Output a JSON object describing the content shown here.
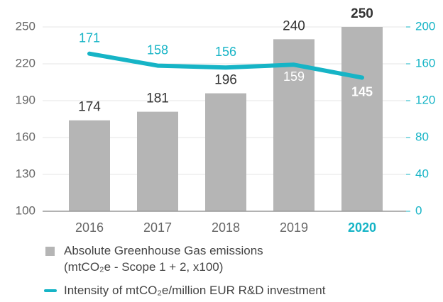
{
  "chart_data": {
    "type": "bar",
    "categories": [
      "2016",
      "2017",
      "2018",
      "2019",
      "2020"
    ],
    "series": [
      {
        "name": "Absolute Greenhouse Gas emissions\n(mtCO₂e - Scope 1 + 2, x100)",
        "color": "#b5b5b5",
        "type": "bar",
        "values": [
          174,
          181,
          196,
          240,
          250
        ]
      },
      {
        "name": "Intensity of mtCO₂e/million EUR R&D investment",
        "color": "#16b4c6",
        "type": "line",
        "axis": "y2",
        "values": [
          171,
          158,
          156,
          159,
          145
        ]
      }
    ],
    "ylim": [
      100,
      250
    ],
    "yticks": [
      100,
      130,
      160,
      190,
      220,
      250
    ],
    "y2lim": [
      0,
      200
    ],
    "y2ticks": [
      0,
      40,
      80,
      120,
      160,
      200
    ],
    "grid": true
  }
}
